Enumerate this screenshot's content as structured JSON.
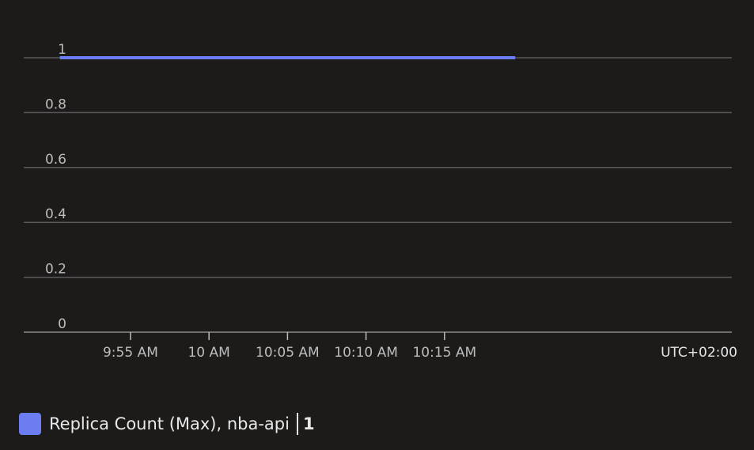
{
  "chart_data": {
    "type": "line",
    "title": "",
    "xlabel": "",
    "ylabel": "",
    "ylim": [
      0,
      1
    ],
    "y_ticks": [
      "0",
      "0.2",
      "0.4",
      "0.6",
      "0.8",
      "1"
    ],
    "y_tick_values": [
      0,
      0.2,
      0.4,
      0.6,
      0.8,
      1
    ],
    "x_ticks": [
      "9:55 AM",
      "10 AM",
      "10:05 AM",
      "10:10 AM",
      "10:15 AM"
    ],
    "x_tick_minutes": [
      595,
      600,
      605,
      610,
      615
    ],
    "xlim_minutes": [
      588.2,
      633.3
    ],
    "timezone": "UTC+02:00",
    "grid": true,
    "legend_position": "bottom-left",
    "series": [
      {
        "name": "Replica Count (Max), nba-api",
        "color": "#6b7df0",
        "x_minutes": [
          590.5,
          619.5
        ],
        "values": [
          1,
          1
        ],
        "summary_value": "1"
      }
    ]
  }
}
